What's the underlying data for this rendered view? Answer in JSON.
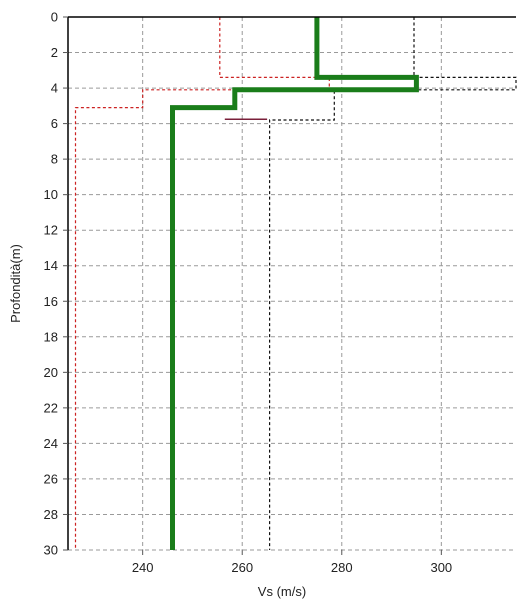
{
  "chart_data": {
    "type": "line",
    "xlabel": "Vs (m/s)",
    "ylabel": "Profondità(m)",
    "xlim": [
      225,
      315
    ],
    "ylim": [
      0,
      30
    ],
    "y_inverted": true,
    "x_ticks": [
      240,
      260,
      280,
      300
    ],
    "x_tick_labels": [
      "240",
      "260",
      "280",
      "300"
    ],
    "y_ticks": [
      0,
      2,
      4,
      6,
      8,
      10,
      12,
      14,
      16,
      18,
      20,
      22,
      24,
      26,
      28,
      30
    ],
    "y_tick_labels": [
      "0",
      "2",
      "4",
      "6",
      "8",
      "10",
      "12",
      "14",
      "16",
      "18",
      "20",
      "22",
      "24",
      "26",
      "28",
      "30"
    ],
    "grid": true,
    "series": [
      {
        "style": "solid-thick",
        "color": "#1a7d1a",
        "x": [
          275,
          275,
          295,
          295,
          258.5,
          258.5,
          246,
          246
        ],
        "y": [
          0,
          3.4,
          3.4,
          4.1,
          4.1,
          5.1,
          5.1,
          30
        ]
      },
      {
        "style": "dashed",
        "color": "#cc2222",
        "x": [
          255.5,
          255.5,
          277.5,
          277.5,
          240,
          240,
          226.5,
          226.5
        ],
        "y": [
          0,
          3.4,
          3.4,
          4.1,
          4.1,
          5.1,
          5.1,
          30
        ]
      },
      {
        "style": "dashed",
        "color": "#111111",
        "x": [
          294.5,
          294.5,
          315,
          315,
          278.5,
          278.5,
          265.5,
          265.5
        ],
        "y": [
          0,
          3.4,
          3.4,
          4.1,
          4.1,
          5.8,
          5.8,
          30
        ]
      },
      {
        "style": "solid-thin",
        "color": "#7a1f3a",
        "x": [
          256.5,
          265
        ],
        "y": [
          5.75,
          5.75
        ]
      }
    ]
  }
}
